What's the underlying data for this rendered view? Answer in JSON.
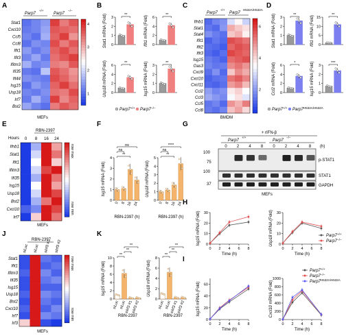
{
  "panels": {
    "A": {
      "label": "A",
      "genotypes": [
        "Parp7",
        "+/+",
        "Parp7",
        "−/−"
      ],
      "genes": [
        "Stat1",
        "Cxcl10",
        "Ccl5",
        "Ccl8",
        "Ifit1",
        "Ifit3",
        "Ifitm3",
        "Ifi35",
        "Ifi44",
        "Isg15",
        "Usp18",
        "Irf7",
        "Bst2"
      ],
      "scale_ticks": [
        "4",
        "3",
        "2",
        "1"
      ],
      "footer": "MEFs",
      "heatmap": [
        [
          1.0,
          1.2,
          1.4,
          3.9,
          3.4,
          3.7
        ],
        [
          1.1,
          1.2,
          1.5,
          3.7,
          3.6,
          3.5
        ],
        [
          1.2,
          1.0,
          1.6,
          3.6,
          3.9,
          3.2
        ],
        [
          1.0,
          1.3,
          1.2,
          3.8,
          3.4,
          3.7
        ],
        [
          1.4,
          1.1,
          1.3,
          3.6,
          3.8,
          3.5
        ],
        [
          1.2,
          1.5,
          1.1,
          3.5,
          3.7,
          3.9
        ],
        [
          1.6,
          1.2,
          1.3,
          3.4,
          3.3,
          3.7
        ],
        [
          1.1,
          1.0,
          1.8,
          3.7,
          3.5,
          3.2
        ],
        [
          1.3,
          1.2,
          1.1,
          3.8,
          3.6,
          3.3
        ],
        [
          1.0,
          1.4,
          1.2,
          3.6,
          3.9,
          3.5
        ],
        [
          1.2,
          1.1,
          1.3,
          3.5,
          3.4,
          3.8
        ],
        [
          1.1,
          1.6,
          1.2,
          3.9,
          3.3,
          3.6
        ],
        [
          1.5,
          1.2,
          1.0,
          3.4,
          3.7,
          3.5
        ]
      ]
    },
    "B": {
      "label": "B",
      "color": "#f08080",
      "ctrl_color": "#9a9a9a",
      "plots": [
        {
          "ylabel_gene": "Stat1",
          "ylabel_rest": " mRNA (Fold)",
          "ticks": [
            "0",
            "1",
            "2",
            "3"
          ],
          "ymax": 3,
          "values": [
            1.0,
            2.2
          ],
          "sig": "**"
        },
        {
          "ylabel_gene": "Ifit1",
          "ylabel_rest": " mRNA (Fold)",
          "ticks": [
            "0",
            "2",
            "4",
            "6"
          ],
          "ymax": 6,
          "values": [
            1.0,
            4.2
          ],
          "sig": "**"
        },
        {
          "ylabel_gene": "Usp18",
          "ylabel_rest": " mRNA (Fold)",
          "ticks": [
            "0",
            "2",
            "4",
            "6"
          ],
          "ymax": 6,
          "values": [
            1.0,
            3.3
          ],
          "sig": "**"
        },
        {
          "ylabel_gene": "Isg15",
          "ylabel_rest": " mRNA (Fold)",
          "ticks": [
            "0",
            "1",
            "2",
            "3"
          ],
          "ymax": 3,
          "values": [
            1.0,
            2.6
          ],
          "sig": "**"
        }
      ],
      "legend": [
        "Parp7",
        "+/+",
        "Parp7",
        "−/−"
      ]
    },
    "C": {
      "label": "C",
      "genotypes": [
        "Parp7",
        "+/+",
        "Parp7",
        "H532A/H532A"
      ],
      "genes": [
        "Ifnb1",
        "Stat1",
        "Stat4",
        "Ifit1",
        "Ifit2",
        "Ifit3",
        "Isg15",
        "Oas3",
        "Cxcl9",
        "Cxcl10",
        "Cxcl11",
        "Ccl2",
        "Ccl3",
        "Ccl5",
        "Ccl8"
      ],
      "scale_ticks": [
        "6",
        "4",
        "2"
      ],
      "footer": "BMDM",
      "heatmap": [
        [
          1.2,
          1.6,
          1.8,
          3.0,
          3.6,
          2.8
        ],
        [
          1.4,
          1.2,
          1.9,
          4.6,
          4.2,
          3.9
        ],
        [
          1.8,
          1.5,
          1.3,
          4.2,
          4.5,
          3.7
        ],
        [
          1.1,
          1.4,
          1.2,
          5.8,
          5.6,
          5.3
        ],
        [
          1.3,
          1.2,
          1.0,
          5.5,
          5.8,
          5.6
        ],
        [
          1.2,
          1.0,
          1.3,
          5.9,
          5.7,
          5.5
        ],
        [
          1.5,
          1.3,
          1.1,
          5.4,
          5.6,
          5.8
        ],
        [
          1.6,
          1.4,
          1.5,
          5.0,
          5.3,
          4.9
        ],
        [
          1.3,
          1.8,
          1.2,
          4.2,
          5.0,
          4.6
        ],
        [
          1.1,
          1.3,
          1.4,
          5.3,
          5.6,
          5.1
        ],
        [
          1.2,
          1.1,
          1.3,
          4.8,
          5.1,
          4.4
        ],
        [
          2.0,
          1.6,
          1.8,
          3.8,
          4.1,
          3.5
        ],
        [
          2.2,
          1.9,
          1.7,
          3.4,
          3.9,
          3.1
        ],
        [
          1.4,
          1.6,
          1.2,
          4.9,
          4.5,
          5.2
        ],
        [
          1.5,
          1.3,
          1.6,
          4.3,
          4.7,
          4.0
        ]
      ]
    },
    "D": {
      "label": "D",
      "color": "#7b7ff0",
      "ctrl_color": "#9a9a9a",
      "plots": [
        {
          "ylabel_gene": "Stat1",
          "ylabel_rest": " mRNA (Fold)",
          "ticks": [
            "0",
            "1",
            "2",
            "3"
          ],
          "ymax": 3,
          "values": [
            1.0,
            2.6
          ],
          "sig": "**"
        },
        {
          "ylabel_gene": "Ifit1",
          "ylabel_rest": " mRNA (Fold)",
          "ticks": [
            "0",
            "5",
            "10",
            "15"
          ],
          "ymax": 15,
          "values": [
            1.0,
            11.0
          ],
          "sig": "**"
        },
        {
          "ylabel_gene": "Ccl2",
          "ylabel_rest": " mRNA (Fold)",
          "ticks": [
            "0",
            "2",
            "4",
            "6"
          ],
          "ymax": 6,
          "values": [
            1.0,
            3.6
          ],
          "sig": "*"
        },
        {
          "ylabel_gene": "Isg15",
          "ylabel_rest": " mRNA (Fold)",
          "ticks": [
            "0",
            "1",
            "2",
            "3"
          ],
          "ymax": 3,
          "values": [
            0.7,
            2.4
          ],
          "sig": "***"
        }
      ],
      "legend": [
        "Parp7",
        "+/+",
        "Parp7",
        "H532A/H532A"
      ]
    },
    "E": {
      "label": "E",
      "title": "RBN-2397",
      "hours_label": "Hours",
      "hours": [
        "0",
        "8",
        "16",
        "24"
      ],
      "genes": [
        "Ifnb1",
        "Stat1",
        "Ifit1",
        "Ifitm3",
        "Ifi35",
        "Isg15",
        "Usp18",
        "Bst2",
        "Cxcl10",
        "Irf7"
      ],
      "scale_labels": [
        "row max",
        "row min"
      ],
      "footer": "MEFs",
      "heatmap": [
        [
          0.0,
          0.3,
          1.0,
          0.7
        ],
        [
          0.0,
          0.4,
          1.0,
          0.8
        ],
        [
          0.0,
          0.5,
          1.0,
          0.6
        ],
        [
          0.0,
          0.4,
          0.9,
          1.0
        ],
        [
          0.0,
          0.3,
          1.0,
          0.8
        ],
        [
          0.0,
          0.5,
          1.0,
          0.7
        ],
        [
          0.0,
          0.4,
          1.0,
          0.9
        ],
        [
          0.0,
          0.3,
          0.8,
          1.0
        ],
        [
          0.1,
          0.2,
          1.0,
          0.9
        ],
        [
          0.0,
          0.6,
          1.0,
          0.8
        ]
      ]
    },
    "F": {
      "label": "F",
      "color": "#f5b46b",
      "plots": [
        {
          "ylabel_gene": "Isg15",
          "ylabel_rest": " mRNA (Fold)",
          "ticks": [
            "0",
            "1",
            "2",
            "3",
            "4"
          ],
          "ymax": 4,
          "cats": [
            "0",
            "8",
            "16",
            "24"
          ],
          "values": [
            1.0,
            1.1,
            2.9,
            1.9
          ],
          "xlabel": "RBN-2397 (h)",
          "sigs": [
            {
              "a": 0,
              "b": 2,
              "t": "**"
            },
            {
              "a": 0,
              "b": 1,
              "t": "ns"
            },
            {
              "a": 0,
              "b": 3,
              "t": "ns"
            }
          ]
        },
        {
          "ylabel_gene": "Usp18",
          "ylabel_rest": " mRNA (Fold)",
          "ticks": [
            "0",
            "1",
            "2",
            "3",
            "4",
            "5"
          ],
          "ymax": 5,
          "cats": [
            "0",
            "8",
            "16",
            "24"
          ],
          "values": [
            1.0,
            1.2,
            1.8,
            4.3
          ],
          "xlabel": "RBN-2397 (h)",
          "sigs": [
            {
              "a": 0,
              "b": 2,
              "t": "**"
            },
            {
              "a": 0,
              "b": 1,
              "t": "ns"
            },
            {
              "a": 0,
              "b": 3,
              "t": "****"
            }
          ]
        }
      ]
    },
    "G": {
      "label": "G",
      "treatment": "+ rIFN-β",
      "genotypes": [
        "Parp7",
        "+/+",
        "Parp7",
        "−/−"
      ],
      "times": [
        "0",
        "2",
        "4",
        "8",
        "0",
        "2",
        "4",
        "8"
      ],
      "time_unit": "(h)",
      "markers": [
        "100",
        "75",
        "100",
        "37"
      ],
      "bands": [
        "p-STAT1",
        "STAT1",
        "GAPDH"
      ],
      "footer": "MEFs"
    },
    "H": {
      "label": "H",
      "plots": [
        {
          "ylabel_gene": "Isg15",
          "ylabel_rest": " mRNA (Fold)",
          "ticks": [
            "0",
            "10",
            "20",
            "30"
          ],
          "ymax": 30,
          "xlabel": "Time (h)",
          "xticks": [
            "0",
            "2",
            "4",
            "6",
            "8"
          ],
          "series": [
            {
              "name": "+/+",
              "color": "#555555",
              "x": [
                0,
                2,
                4,
                8
              ],
              "y": [
                1,
                10,
                18,
                21
              ]
            },
            {
              "name": "−/−",
              "color": "#e05050",
              "x": [
                0,
                2,
                4,
                8
              ],
              "y": [
                1,
                11,
                21,
                26
              ]
            }
          ]
        },
        {
          "ylabel_gene": "Usp18",
          "ylabel_rest": " mRNA (Fold)",
          "ticks": [
            "0",
            "10",
            "20",
            "30"
          ],
          "ymax": 30,
          "xlabel": "Time (h)",
          "xticks": [
            "0",
            "2",
            "4",
            "6",
            "8"
          ],
          "series": [
            {
              "name": "+/+",
              "color": "#555555",
              "x": [
                0,
                2,
                4,
                8
              ],
              "y": [
                1,
                11,
                20,
                15
              ]
            },
            {
              "name": "−/−",
              "color": "#e05050",
              "x": [
                0,
                2,
                4,
                8
              ],
              "y": [
                1,
                12,
                21,
                17
              ]
            }
          ]
        }
      ],
      "legend": [
        {
          "gene": "Parp7",
          "sup": "+/+",
          "color": "#555555"
        },
        {
          "gene": "Parp7",
          "sup": "−/−",
          "color": "#e05050"
        }
      ]
    },
    "I": {
      "label": "I",
      "plots": [
        {
          "ylabel_gene": "Isg15",
          "ylabel_rest": " mRNA (Fold)",
          "ticks": [
            "0",
            "20",
            "40",
            "60"
          ],
          "ymax": 70,
          "xlabel": "Time (h)",
          "xticks": [
            "0",
            "2",
            "4",
            "6",
            "8"
          ],
          "series": [
            {
              "name": "+/+",
              "color": "#555555",
              "x": [
                0,
                2,
                4,
                8
              ],
              "y": [
                1,
                18,
                30,
                52
              ]
            },
            {
              "name": "−/−",
              "color": "#e05050",
              "x": [
                0,
                2,
                4,
                8
              ],
              "y": [
                1,
                20,
                33,
                55
              ]
            },
            {
              "name": "H532A",
              "color": "#5a5af0",
              "x": [
                0,
                2,
                4,
                8
              ],
              "y": [
                1,
                19,
                32,
                57
              ]
            }
          ]
        },
        {
          "ylabel_gene": "Cxcl10",
          "ylabel_rest": " mRNA (Fold)",
          "ticks": [
            "0",
            "200",
            "400",
            "600",
            "800",
            "1000"
          ],
          "ymax": 1000,
          "xlabel": "Time (h)",
          "xticks": [
            "0",
            "2",
            "4",
            "6",
            "8"
          ],
          "series": [
            {
              "name": "+/+",
              "color": "#555555",
              "x": [
                0,
                2,
                4,
                8
              ],
              "y": [
                5,
                420,
                650,
                110
              ]
            },
            {
              "name": "−/−",
              "color": "#e05050",
              "x": [
                0,
                2,
                4,
                8
              ],
              "y": [
                5,
                480,
                700,
                120
              ]
            },
            {
              "name": "H532A",
              "color": "#5a5af0",
              "x": [
                0,
                2,
                4,
                8
              ],
              "y": [
                5,
                540,
                720,
                125
              ]
            }
          ]
        }
      ],
      "legend": [
        {
          "gene": "Parp7",
          "sup": "+/+",
          "color": "#555555"
        },
        {
          "gene": "Parp7",
          "sup": "−/−",
          "color": "#e05050"
        },
        {
          "gene": "Parp7",
          "sup": "H532A/H532A",
          "color": "#5a5af0"
        }
      ]
    },
    "J": {
      "label": "J",
      "title": "RBN-2397",
      "columns": [
        "siLuc",
        "siLuc",
        "siIrf3 #1",
        "siIrf3 #2"
      ],
      "genes": [
        "Stat1",
        "Ifit1",
        "Ifitm3",
        "Ifi35",
        "Isg15",
        "Usp18",
        "Bst2",
        "Cxcl10",
        "Irf7",
        "Irf3"
      ],
      "scale_labels": [
        "row max",
        "row min"
      ],
      "footer": "MEFs",
      "heatmap": [
        [
          0.05,
          1.0,
          0.15,
          0.1
        ],
        [
          0.05,
          1.0,
          0.1,
          0.15
        ],
        [
          0.1,
          1.0,
          0.2,
          0.1
        ],
        [
          0.05,
          1.0,
          0.15,
          0.2
        ],
        [
          0.05,
          1.0,
          0.1,
          0.1
        ],
        [
          0.1,
          1.0,
          0.2,
          0.15
        ],
        [
          0.05,
          1.0,
          0.15,
          0.1
        ],
        [
          0.1,
          1.0,
          0.1,
          0.2
        ],
        [
          0.05,
          1.0,
          0.2,
          0.15
        ],
        [
          0.6,
          1.0,
          0.05,
          0.0
        ]
      ]
    },
    "K": {
      "label": "K",
      "color": "#f5b46b",
      "ctrl_color": "#ffffff",
      "plots": [
        {
          "ylabel_gene": "Isg15",
          "ylabel_rest": " mRNA (Fold)",
          "ticks": [
            "0",
            "2",
            "4",
            "6",
            "8",
            "10"
          ],
          "ymax": 10,
          "cats": [
            "siLuc",
            "siLuc",
            "siIrf3 #1",
            "siIrf3 #2"
          ],
          "values": [
            1.0,
            6.2,
            0.3,
            0.3
          ],
          "xlabel": "RBN-2397",
          "sigs": [
            {
              "a": 0,
              "b": 1,
              "t": "**"
            },
            {
              "a": 1,
              "b": 2,
              "t": "**"
            },
            {
              "a": 1,
              "b": 3,
              "t": "**"
            }
          ]
        },
        {
          "ylabel_gene": "Usp18",
          "ylabel_rest": " mRNA (Fold)",
          "ticks": [
            "0",
            "2",
            "4",
            "6",
            "8"
          ],
          "ymax": 8,
          "cats": [
            "siLuc",
            "siLuc",
            "siIrf3 #1",
            "siIrf3 #2"
          ],
          "values": [
            1.0,
            5.2,
            0.3,
            0.3
          ],
          "xlabel": "RBN-2397",
          "sigs": [
            {
              "a": 0,
              "b": 1,
              "t": "**"
            },
            {
              "a": 1,
              "b": 2,
              "t": "**"
            },
            {
              "a": 1,
              "b": 3,
              "t": "**"
            }
          ]
        }
      ]
    }
  }
}
